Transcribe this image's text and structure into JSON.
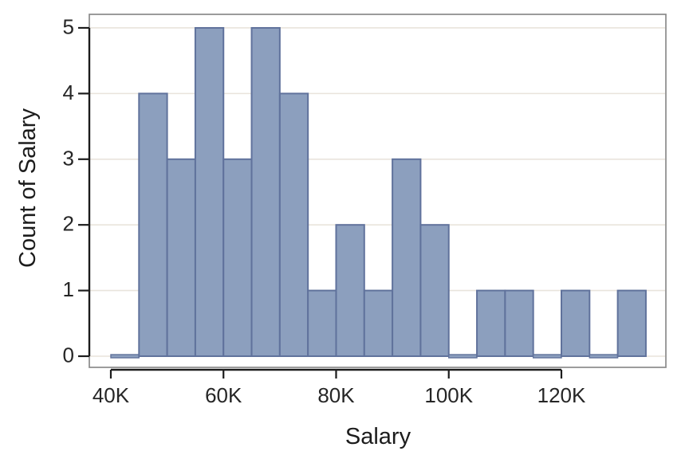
{
  "chart_data": {
    "type": "bar",
    "subtype": "histogram",
    "xlabel": "Salary",
    "ylabel": "Count of Salary",
    "bin_width": 5000,
    "bins": [
      {
        "x0": 40000,
        "x1": 45000,
        "count": 0
      },
      {
        "x0": 45000,
        "x1": 50000,
        "count": 4
      },
      {
        "x0": 50000,
        "x1": 55000,
        "count": 3
      },
      {
        "x0": 55000,
        "x1": 60000,
        "count": 5
      },
      {
        "x0": 60000,
        "x1": 65000,
        "count": 3
      },
      {
        "x0": 65000,
        "x1": 70000,
        "count": 5
      },
      {
        "x0": 70000,
        "x1": 75000,
        "count": 4
      },
      {
        "x0": 75000,
        "x1": 80000,
        "count": 1
      },
      {
        "x0": 80000,
        "x1": 85000,
        "count": 2
      },
      {
        "x0": 85000,
        "x1": 90000,
        "count": 1
      },
      {
        "x0": 90000,
        "x1": 95000,
        "count": 3
      },
      {
        "x0": 95000,
        "x1": 100000,
        "count": 2
      },
      {
        "x0": 100000,
        "x1": 105000,
        "count": 0
      },
      {
        "x0": 105000,
        "x1": 110000,
        "count": 1
      },
      {
        "x0": 110000,
        "x1": 115000,
        "count": 1
      },
      {
        "x0": 115000,
        "x1": 120000,
        "count": 0
      },
      {
        "x0": 120000,
        "x1": 125000,
        "count": 1
      },
      {
        "x0": 125000,
        "x1": 130000,
        "count": 0
      },
      {
        "x0": 130000,
        "x1": 135000,
        "count": 1
      }
    ],
    "x_ticks": [
      {
        "value": 40000,
        "label": "40K"
      },
      {
        "value": 60000,
        "label": "60K"
      },
      {
        "value": 80000,
        "label": "80K"
      },
      {
        "value": 100000,
        "label": "100K"
      },
      {
        "value": 120000,
        "label": "120K"
      }
    ],
    "y_ticks": [
      {
        "value": 0,
        "label": "0"
      },
      {
        "value": 1,
        "label": "1"
      },
      {
        "value": 2,
        "label": "2"
      },
      {
        "value": 3,
        "label": "3"
      },
      {
        "value": 4,
        "label": "4"
      },
      {
        "value": 5,
        "label": "5"
      }
    ],
    "x_range": [
      36180,
      138550
    ],
    "y_range": [
      -0.17,
      5.206
    ],
    "grid": true,
    "legend": false,
    "colors": {
      "bar_fill": "#8C9FBE",
      "bar_stroke": "#60729C",
      "gridline": "#E9E4DC",
      "frame": "#8A8A8A",
      "axis_line": "#1c1c1c",
      "tick_text": "#262626",
      "title_text": "#1c1c1c",
      "background": "#ffffff"
    }
  }
}
